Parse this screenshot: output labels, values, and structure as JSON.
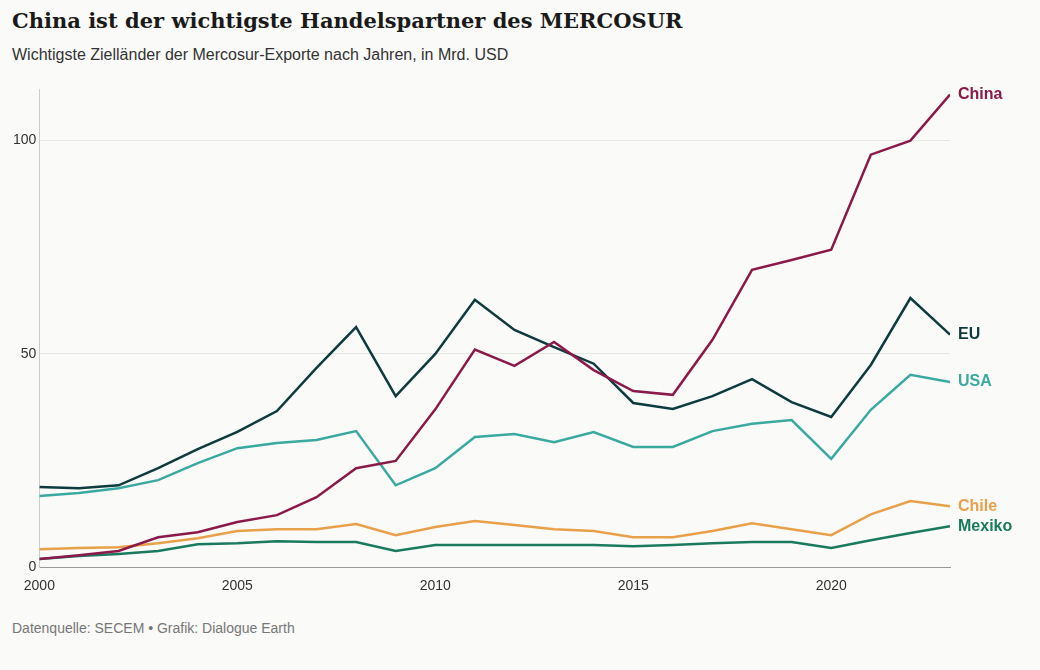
{
  "chart_data": {
    "type": "line",
    "title": "China ist der wichtigste Handelspartner des MERCOSUR",
    "subtitle": "Wichtigste Zielländer der Mercosur-Exporte nach Jahren, in Mrd. USD",
    "source": "Datenquelle: SECEM • Grafik: Dialogue Earth",
    "x": [
      2000,
      2001,
      2002,
      2003,
      2004,
      2005,
      2006,
      2007,
      2008,
      2009,
      2010,
      2011,
      2012,
      2013,
      2014,
      2015,
      2016,
      2017,
      2018,
      2019,
      2020,
      2021,
      2022,
      2023
    ],
    "xlim": [
      2000,
      2023
    ],
    "xticks": [
      2000,
      2005,
      2010,
      2015,
      2020
    ],
    "ylim": [
      0,
      112
    ],
    "yticks": [
      0,
      50,
      100
    ],
    "grid": true,
    "series": [
      {
        "name": "China",
        "color": "#8b1a4a",
        "values": [
          1.9,
          2.8,
          3.8,
          7,
          8.2,
          10.6,
          12.2,
          16.4,
          23.2,
          24.9,
          37,
          51,
          47.2,
          52.8,
          46.2,
          41.3,
          40.4,
          53.3,
          69.7,
          72,
          74.4,
          96.7,
          100,
          110.8
        ]
      },
      {
        "name": "EU",
        "color": "#0d3b3e",
        "values": [
          18.8,
          18.5,
          19.2,
          23.2,
          27.7,
          31.7,
          36.6,
          46.7,
          56.3,
          40.1,
          50,
          62.7,
          55.6,
          51.6,
          47.7,
          38.5,
          37.1,
          40.1,
          44.1,
          38.7,
          35.2,
          47.4,
          63.1,
          54.5
        ]
      },
      {
        "name": "USA",
        "color": "#3aa99f",
        "values": [
          16.7,
          17.4,
          18.5,
          20.4,
          24.4,
          27.9,
          29.1,
          29.8,
          31.9,
          19.2,
          23.2,
          30.5,
          31.2,
          29.3,
          31.7,
          28.2,
          28.2,
          31.9,
          33.6,
          34.5,
          25.4,
          36.9,
          45.1,
          43.4
        ]
      },
      {
        "name": "Chile",
        "color": "#e8a04a",
        "values": [
          4.2,
          4.5,
          4.7,
          5.6,
          6.8,
          8.5,
          8.9,
          8.9,
          10.1,
          7.5,
          9.4,
          10.8,
          9.9,
          8.9,
          8.5,
          7,
          7,
          8.5,
          10.3,
          8.9,
          7.5,
          12.4,
          15.5,
          14.3
        ]
      },
      {
        "name": "Mexiko",
        "color": "#1a7a5e",
        "values": [
          1.9,
          2.6,
          3.1,
          3.8,
          5.4,
          5.6,
          6.1,
          5.9,
          5.9,
          3.8,
          5.2,
          5.2,
          5.2,
          5.2,
          5.2,
          4.9,
          5.2,
          5.6,
          5.9,
          5.9,
          4.5,
          6.3,
          8,
          9.6
        ]
      }
    ]
  }
}
